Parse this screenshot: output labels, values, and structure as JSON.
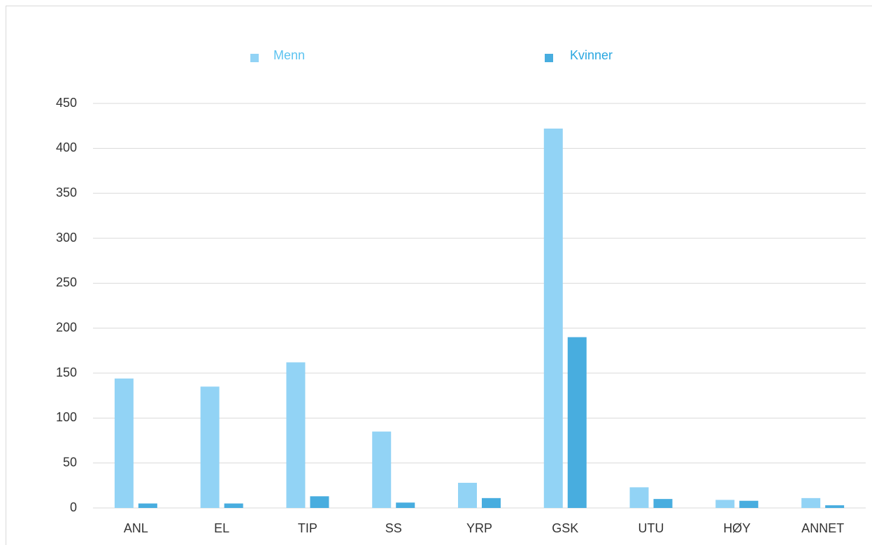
{
  "chart_data": {
    "type": "bar",
    "categories": [
      "ANL",
      "EL",
      "TIP",
      "SS",
      "YRP",
      "GSK",
      "UTU",
      "HØY",
      "ANNET"
    ],
    "series": [
      {
        "name": "Menn",
        "color": "#92d3f5",
        "values": [
          144,
          135,
          162,
          85,
          28,
          422,
          23,
          9,
          11
        ]
      },
      {
        "name": "Kvinner",
        "color": "#48addf",
        "values": [
          5,
          5,
          13,
          6,
          11,
          190,
          10,
          8,
          3
        ]
      }
    ],
    "ylim": [
      0,
      450
    ],
    "yticks": [
      0,
      50,
      100,
      150,
      200,
      250,
      300,
      350,
      400,
      450
    ],
    "grid": true,
    "legend": "top"
  }
}
